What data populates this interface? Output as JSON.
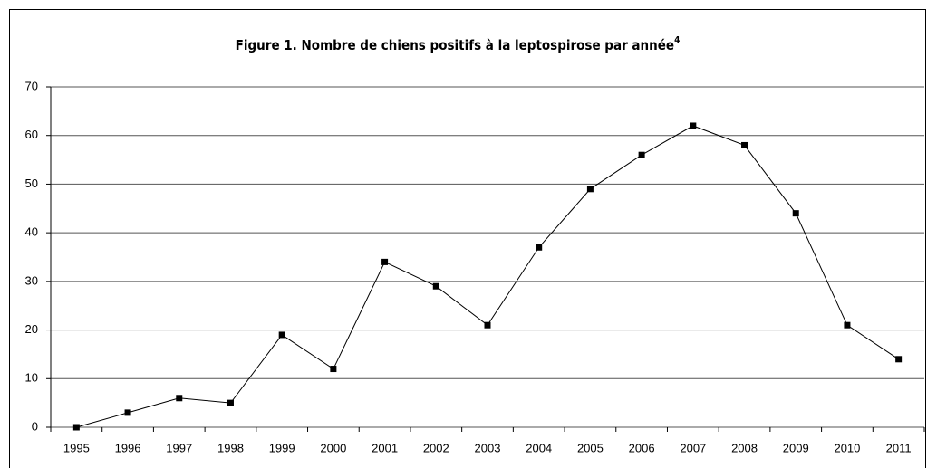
{
  "chart_data": {
    "type": "line",
    "title": "Figure 1. Nombre de chiens positifs à la leptospirose par année",
    "title_superscript": "4",
    "categories": [
      "1995",
      "1996",
      "1997",
      "1998",
      "1999",
      "2000",
      "2001",
      "2002",
      "2003",
      "2004",
      "2005",
      "2006",
      "2007",
      "2008",
      "2009",
      "2010",
      "2011"
    ],
    "values": [
      0,
      3,
      6,
      5,
      19,
      12,
      34,
      29,
      21,
      37,
      49,
      56,
      62,
      58,
      44,
      21,
      14
    ],
    "color": "#000000",
    "ylim": [
      0,
      70
    ],
    "yticks": [
      0,
      10,
      20,
      30,
      40,
      50,
      60,
      70
    ],
    "grid": true
  }
}
